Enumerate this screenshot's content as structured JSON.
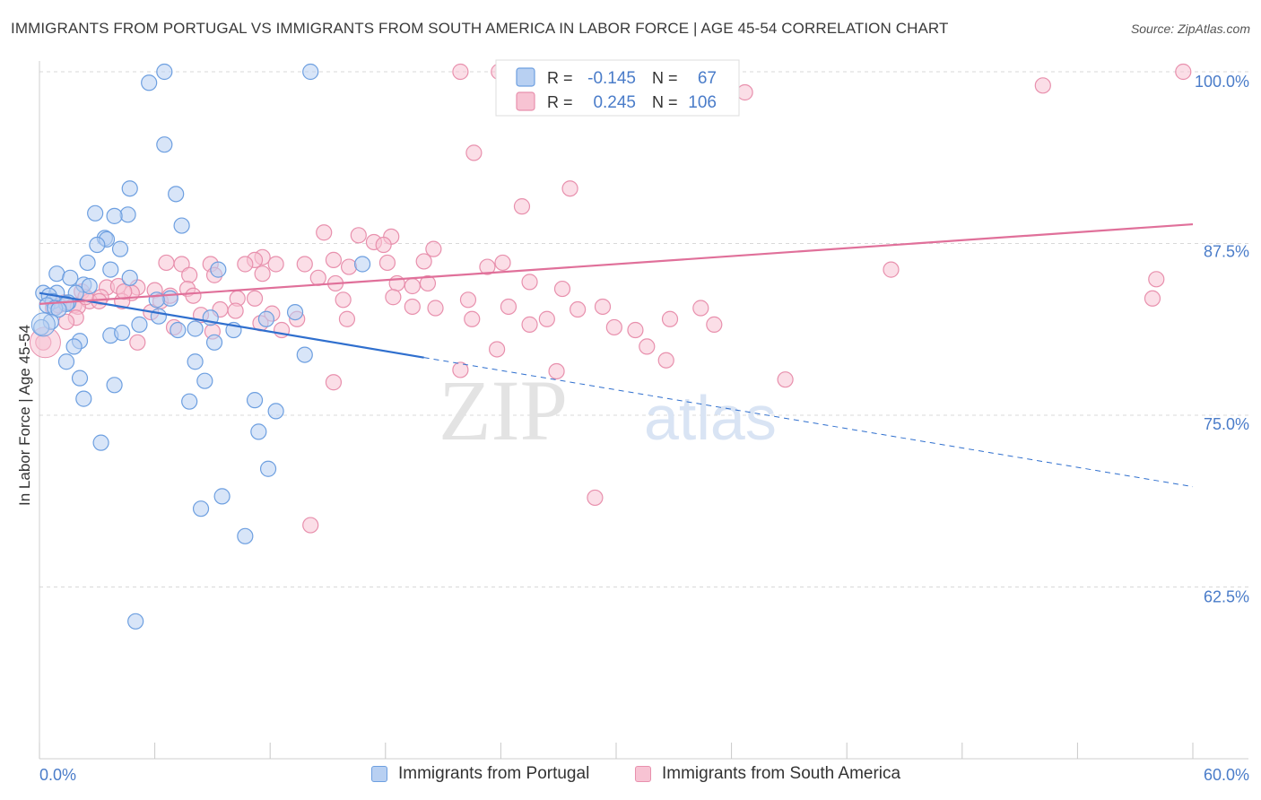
{
  "title": "IMMIGRANTS FROM PORTUGAL VS IMMIGRANTS FROM SOUTH AMERICA IN LABOR FORCE | AGE 45-54 CORRELATION CHART",
  "source": "Source: ZipAtlas.com",
  "watermark": {
    "zip": "ZIP",
    "atlas": "atlas"
  },
  "legend_top": [
    {
      "r_label": "R =",
      "r_value": "-0.145",
      "n_label": "N =",
      "n_value": "67"
    },
    {
      "r_label": "R =",
      "r_value": "0.245",
      "n_label": "N =",
      "n_value": "106"
    }
  ],
  "legend_bottom": [
    {
      "label": "Immigrants from Portugal"
    },
    {
      "label": "Immigrants from South America"
    }
  ],
  "colors": {
    "blue_fill": "#b8d0f2",
    "blue_stroke": "#6d9fe0",
    "blue_line": "#2f6fce",
    "pink_fill": "#f7c3d3",
    "pink_stroke": "#e890ad",
    "pink_line": "#e0709a",
    "tick_label": "#4a7cc9",
    "grid": "#d8d8d8"
  },
  "chart_data": {
    "type": "scatter",
    "title": "IMMIGRANTS FROM PORTUGAL VS IMMIGRANTS FROM SOUTH AMERICA IN LABOR FORCE | AGE 45-54 CORRELATION CHART",
    "xlabel": "",
    "ylabel": "In Labor Force | Age 45-54",
    "xlim": [
      0,
      60
    ],
    "ylim": [
      50,
      101.5
    ],
    "x_tick_labels": [
      {
        "value": 0,
        "label": "0.0%"
      },
      {
        "value": 60,
        "label": "60.0%"
      }
    ],
    "y_tick_labels": [
      {
        "value": 100,
        "label": "100.0%"
      },
      {
        "value": 87.5,
        "label": "87.5%"
      },
      {
        "value": 75,
        "label": "75.0%"
      },
      {
        "value": 62.5,
        "label": "62.5%"
      }
    ],
    "grid": true,
    "legend_position": "top-center",
    "series": [
      {
        "name": "Immigrants from Portugal",
        "R": -0.145,
        "N": 67,
        "trend": {
          "x0": 0,
          "y0": 83.9,
          "x1": 20,
          "y1": 79.2,
          "dash_to_x": 60,
          "dash_to_y": 69.8
        },
        "points": [
          [
            6.5,
            100
          ],
          [
            14.1,
            100
          ],
          [
            5.7,
            99.2
          ],
          [
            6.5,
            94.7
          ],
          [
            4.7,
            91.5
          ],
          [
            7.1,
            91.1
          ],
          [
            2.9,
            89.7
          ],
          [
            4.6,
            89.6
          ],
          [
            3.9,
            89.5
          ],
          [
            7.4,
            88.8
          ],
          [
            3.4,
            87.9
          ],
          [
            3.5,
            87.8
          ],
          [
            3.0,
            87.4
          ],
          [
            4.2,
            87.1
          ],
          [
            2.5,
            86.1
          ],
          [
            16.8,
            86.0
          ],
          [
            3.7,
            85.6
          ],
          [
            9.3,
            85.6
          ],
          [
            0.9,
            85.3
          ],
          [
            1.6,
            85.0
          ],
          [
            4.7,
            85.0
          ],
          [
            2.3,
            84.5
          ],
          [
            2.6,
            84.4
          ],
          [
            0.2,
            83.9
          ],
          [
            0.9,
            83.9
          ],
          [
            0.5,
            83.7
          ],
          [
            1.9,
            83.9
          ],
          [
            6.8,
            83.5
          ],
          [
            6.1,
            83.4
          ],
          [
            0.7,
            83.3
          ],
          [
            1.5,
            83.2
          ],
          [
            1.4,
            83.1
          ],
          [
            0.4,
            83.0
          ],
          [
            0.8,
            82.8
          ],
          [
            1.0,
            82.7
          ],
          [
            13.3,
            82.5
          ],
          [
            6.2,
            82.2
          ],
          [
            8.9,
            82.1
          ],
          [
            11.8,
            82.0
          ],
          [
            0.6,
            81.8
          ],
          [
            5.2,
            81.6
          ],
          [
            8.1,
            81.3
          ],
          [
            10.1,
            81.2
          ],
          [
            7.2,
            81.2
          ],
          [
            3.7,
            80.8
          ],
          [
            4.3,
            81.0
          ],
          [
            2.1,
            80.4
          ],
          [
            9.1,
            80.3
          ],
          [
            1.8,
            80.0
          ],
          [
            13.8,
            79.4
          ],
          [
            1.4,
            78.9
          ],
          [
            8.1,
            78.9
          ],
          [
            2.1,
            77.7
          ],
          [
            8.6,
            77.5
          ],
          [
            3.9,
            77.2
          ],
          [
            2.3,
            76.2
          ],
          [
            7.8,
            76.0
          ],
          [
            11.2,
            76.1
          ],
          [
            12.3,
            75.3
          ],
          [
            11.4,
            73.8
          ],
          [
            3.2,
            73.0
          ],
          [
            11.9,
            71.1
          ],
          [
            9.5,
            69.1
          ],
          [
            8.4,
            68.2
          ],
          [
            10.7,
            66.2
          ],
          [
            5.0,
            60.0
          ],
          [
            0.1,
            81.4
          ]
        ]
      },
      {
        "name": "Immigrants from South America",
        "R": 0.245,
        "N": 106,
        "trend": {
          "x0": 0,
          "y0": 83.1,
          "x1": 60,
          "y1": 88.9
        },
        "points": [
          [
            21.9,
            100
          ],
          [
            23.9,
            100
          ],
          [
            31.8,
            100
          ],
          [
            34.9,
            100
          ],
          [
            59.5,
            100
          ],
          [
            52.2,
            99.0
          ],
          [
            36.7,
            98.5
          ],
          [
            22.6,
            94.1
          ],
          [
            27.6,
            91.5
          ],
          [
            25.1,
            90.2
          ],
          [
            14.8,
            88.3
          ],
          [
            16.6,
            88.1
          ],
          [
            18.3,
            88.0
          ],
          [
            17.4,
            87.6
          ],
          [
            17.9,
            87.4
          ],
          [
            20.5,
            87.1
          ],
          [
            11.6,
            86.5
          ],
          [
            11.2,
            86.3
          ],
          [
            20.0,
            86.2
          ],
          [
            15.3,
            86.3
          ],
          [
            18.1,
            86.1
          ],
          [
            24.1,
            86.1
          ],
          [
            6.6,
            86.1
          ],
          [
            7.4,
            86.0
          ],
          [
            8.9,
            86.0
          ],
          [
            10.7,
            86.0
          ],
          [
            12.3,
            86.0
          ],
          [
            13.8,
            86.0
          ],
          [
            16.1,
            85.8
          ],
          [
            23.3,
            85.8
          ],
          [
            44.3,
            85.6
          ],
          [
            11.6,
            85.3
          ],
          [
            9.1,
            85.2
          ],
          [
            7.8,
            85.2
          ],
          [
            14.5,
            85.0
          ],
          [
            58.1,
            84.9
          ],
          [
            20.2,
            84.6
          ],
          [
            25.5,
            84.7
          ],
          [
            18.6,
            84.6
          ],
          [
            19.4,
            84.4
          ],
          [
            15.4,
            84.6
          ],
          [
            2.2,
            84.0
          ],
          [
            3.5,
            84.3
          ],
          [
            4.1,
            84.4
          ],
          [
            5.1,
            84.3
          ],
          [
            6.0,
            84.1
          ],
          [
            7.7,
            84.2
          ],
          [
            27.2,
            84.2
          ],
          [
            4.8,
            83.9
          ],
          [
            8.0,
            83.7
          ],
          [
            3.2,
            83.6
          ],
          [
            10.3,
            83.5
          ],
          [
            11.2,
            83.5
          ],
          [
            15.8,
            83.4
          ],
          [
            18.4,
            83.6
          ],
          [
            22.3,
            83.4
          ],
          [
            6.3,
            83.3
          ],
          [
            4.3,
            83.3
          ],
          [
            2.6,
            83.3
          ],
          [
            1.3,
            83.2
          ],
          [
            1.8,
            83.0
          ],
          [
            2.0,
            82.9
          ],
          [
            0.7,
            82.8
          ],
          [
            19.4,
            82.9
          ],
          [
            24.4,
            82.9
          ],
          [
            29.3,
            82.9
          ],
          [
            20.6,
            82.8
          ],
          [
            28.0,
            82.7
          ],
          [
            34.4,
            82.8
          ],
          [
            57.9,
            83.5
          ],
          [
            9.4,
            82.7
          ],
          [
            10.2,
            82.6
          ],
          [
            12.1,
            82.4
          ],
          [
            5.8,
            82.5
          ],
          [
            8.4,
            82.3
          ],
          [
            1.9,
            82.1
          ],
          [
            13.4,
            82.0
          ],
          [
            16.0,
            82.0
          ],
          [
            22.5,
            82.0
          ],
          [
            26.4,
            82.0
          ],
          [
            32.8,
            82.0
          ],
          [
            35.1,
            81.6
          ],
          [
            7.0,
            81.4
          ],
          [
            11.5,
            81.7
          ],
          [
            25.5,
            81.6
          ],
          [
            29.9,
            81.4
          ],
          [
            31.0,
            81.2
          ],
          [
            12.6,
            81.2
          ],
          [
            9.0,
            81.1
          ],
          [
            5.1,
            80.3
          ],
          [
            31.6,
            80.0
          ],
          [
            32.6,
            79.0
          ],
          [
            23.8,
            79.8
          ],
          [
            21.9,
            78.3
          ],
          [
            26.9,
            78.2
          ],
          [
            38.8,
            77.6
          ],
          [
            15.3,
            77.4
          ],
          [
            28.9,
            69.0
          ],
          [
            14.1,
            67.0
          ],
          [
            1.0,
            83.0
          ],
          [
            1.4,
            81.8
          ],
          [
            0.2,
            80.3
          ],
          [
            3.1,
            83.3
          ],
          [
            4.4,
            84.0
          ],
          [
            2.4,
            83.6
          ],
          [
            6.8,
            83.7
          ]
        ]
      }
    ]
  }
}
